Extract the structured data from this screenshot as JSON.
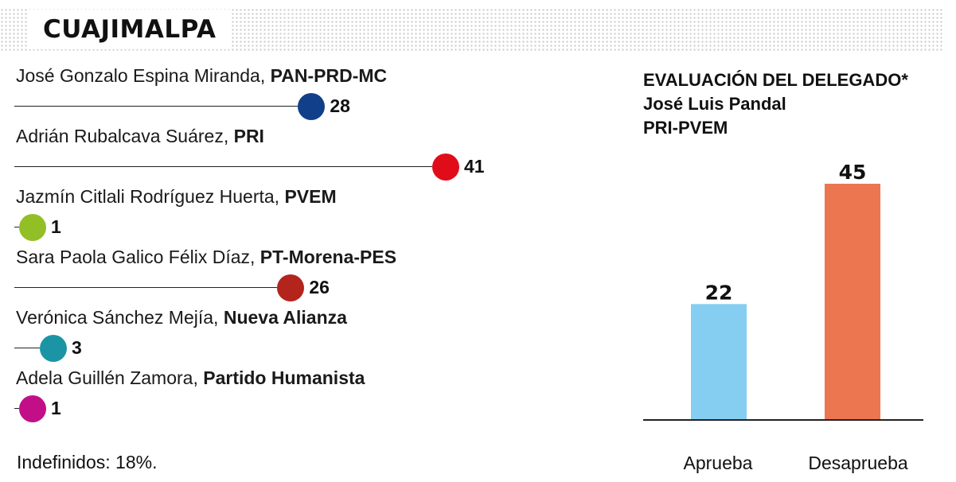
{
  "header": {
    "title": "CUAJIMALPA"
  },
  "candidates": {
    "max_value": 41,
    "items": [
      {
        "name": "José Gonzalo Espina Miranda, ",
        "party": "PAN-PRD-MC",
        "value": 28,
        "value_label": "28",
        "color": "#123f8a"
      },
      {
        "name": "Adrián Rubalcava Suárez, ",
        "party": "PRI",
        "value": 41,
        "value_label": "41",
        "color": "#e10c1a"
      },
      {
        "name": "Jazmín Citlali Rodríguez Huerta, ",
        "party": "PVEM",
        "value": 1,
        "value_label": "1",
        "color": "#93bf26"
      },
      {
        "name": "Sara Paola Galico Félix Díaz, ",
        "party": "PT-Morena-PES",
        "value": 26,
        "value_label": "26",
        "color": "#b3241d"
      },
      {
        "name": "Verónica Sánchez Mejía, ",
        "party": "Nueva Alianza",
        "value": 3,
        "value_label": "3",
        "color": "#1b95a5"
      },
      {
        "name": "Adela Guillén Zamora, ",
        "party": "Partido Humanista",
        "value": 1,
        "value_label": "1",
        "color": "#c20f87"
      }
    ]
  },
  "footnote": "Indefinidos: 18%.",
  "evaluation": {
    "title_line1": "EVALUACIÓN DEL DELEGADO*",
    "title_line2": "José Luis Pandal",
    "title_line3": "PRI-PVEM"
  },
  "chart_data": {
    "type": "bar",
    "title": "EVALUACIÓN DEL DELEGADO*",
    "subtitle": "José Luis Pandal PRI-PVEM",
    "categories": [
      "Aprueba",
      "Desaprueba"
    ],
    "values": [
      22,
      45
    ],
    "colors": [
      "#86cdf2",
      "#ec7650"
    ],
    "ylim": [
      0,
      45
    ],
    "grid": false,
    "xlabel": "",
    "ylabel": ""
  }
}
